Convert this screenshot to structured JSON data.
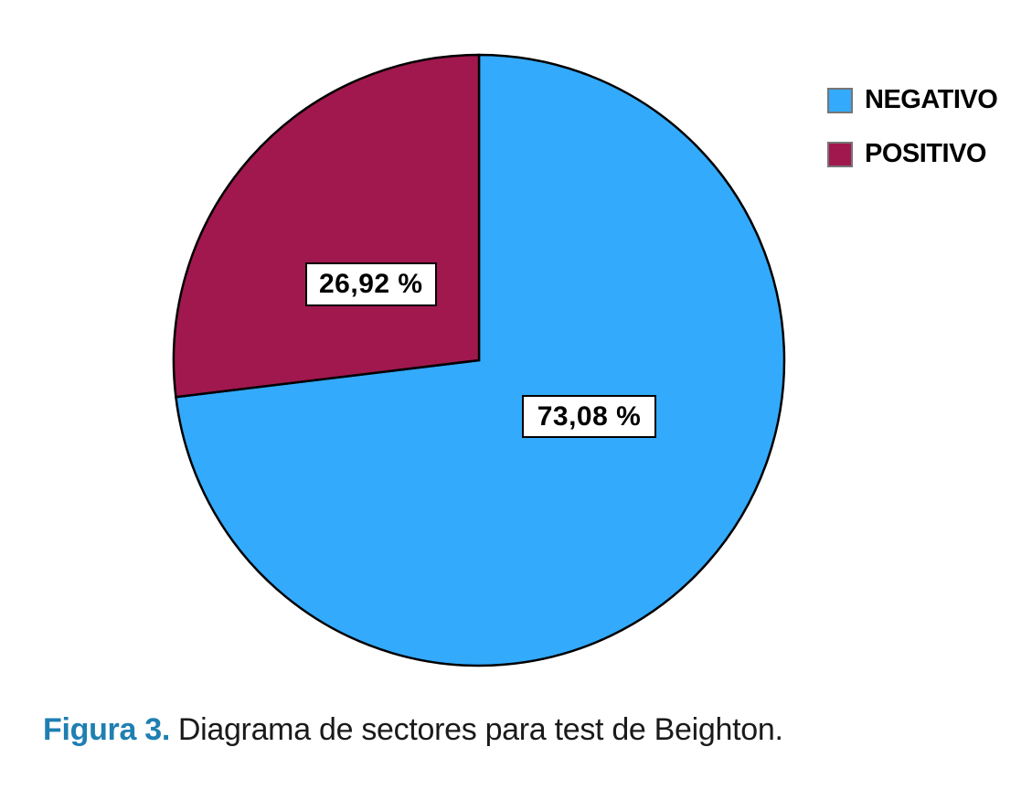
{
  "figure": {
    "caption_prefix": "Figura 3.",
    "caption_text": "Diagrama de sectores para test de Beighton.",
    "caption_prefix_color": "#1F7FB2"
  },
  "chart_data": {
    "type": "pie",
    "title": "",
    "labels": [
      "NEGATIVO",
      "POSITIVO"
    ],
    "values": [
      73.08,
      26.92
    ],
    "value_labels": [
      "73,08 %",
      "26,92 %"
    ],
    "colors": [
      "#33AAFC",
      "#A1184E"
    ],
    "outline_color": "#000000",
    "start_angle_deg": -90,
    "direction": "clockwise",
    "legend_position": "top-right",
    "background": "#ffffff"
  }
}
